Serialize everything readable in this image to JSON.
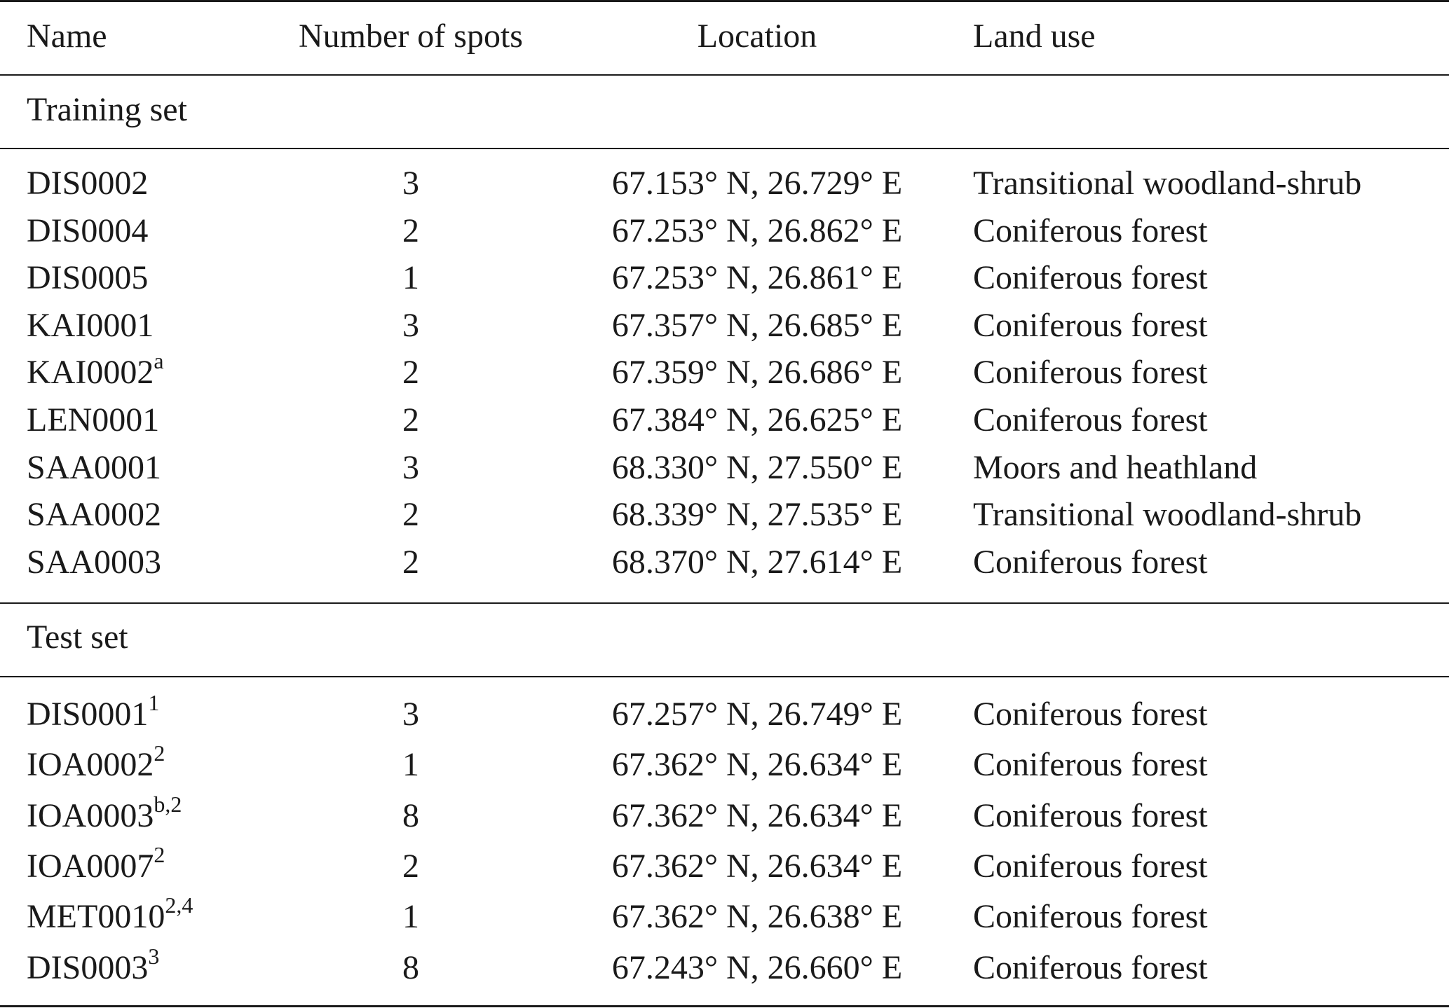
{
  "headers": {
    "name": "Name",
    "spots": "Number of spots",
    "location": "Location",
    "land_use": "Land use"
  },
  "sections": [
    {
      "title": "Training set",
      "rows": [
        {
          "name": "DIS0002",
          "sup": "",
          "spots": "3",
          "location": "67.153° N, 26.729° E",
          "land_use": "Transitional woodland-shrub"
        },
        {
          "name": "DIS0004",
          "sup": "",
          "spots": "2",
          "location": "67.253° N, 26.862° E",
          "land_use": "Coniferous forest"
        },
        {
          "name": "DIS0005",
          "sup": "",
          "spots": "1",
          "location": "67.253° N, 26.861° E",
          "land_use": "Coniferous forest"
        },
        {
          "name": "KAI0001",
          "sup": "",
          "spots": "3",
          "location": "67.357° N, 26.685° E",
          "land_use": "Coniferous forest"
        },
        {
          "name": "KAI0002",
          "sup": "a",
          "spots": "2",
          "location": "67.359° N, 26.686° E",
          "land_use": "Coniferous forest"
        },
        {
          "name": "LEN0001",
          "sup": "",
          "spots": "2",
          "location": "67.384° N, 26.625° E",
          "land_use": "Coniferous forest"
        },
        {
          "name": "SAA0001",
          "sup": "",
          "spots": "3",
          "location": "68.330° N, 27.550° E",
          "land_use": "Moors and heathland"
        },
        {
          "name": "SAA0002",
          "sup": "",
          "spots": "2",
          "location": "68.339° N, 27.535° E",
          "land_use": "Transitional woodland-shrub"
        },
        {
          "name": "SAA0003",
          "sup": "",
          "spots": "2",
          "location": "68.370° N, 27.614° E",
          "land_use": "Coniferous forest"
        }
      ]
    },
    {
      "title": "Test set",
      "rows": [
        {
          "name": "DIS0001",
          "sup": "1",
          "spots": "3",
          "location": "67.257° N, 26.749° E",
          "land_use": "Coniferous forest"
        },
        {
          "name": "IOA0002",
          "sup": "2",
          "spots": "1",
          "location": "67.362° N, 26.634° E",
          "land_use": "Coniferous forest"
        },
        {
          "name": "IOA0003",
          "sup": "b,2",
          "spots": "8",
          "location": "67.362° N, 26.634° E",
          "land_use": "Coniferous forest"
        },
        {
          "name": "IOA0007",
          "sup": "2",
          "spots": "2",
          "location": "67.362° N, 26.634° E",
          "land_use": "Coniferous forest"
        },
        {
          "name": "MET0010",
          "sup": "2,4",
          "spots": "1",
          "location": "67.362° N, 26.638° E",
          "land_use": "Coniferous forest"
        },
        {
          "name": "DIS0003",
          "sup": "3",
          "spots": "8",
          "location": "67.243° N, 26.660° E",
          "land_use": "Coniferous forest"
        }
      ]
    }
  ]
}
